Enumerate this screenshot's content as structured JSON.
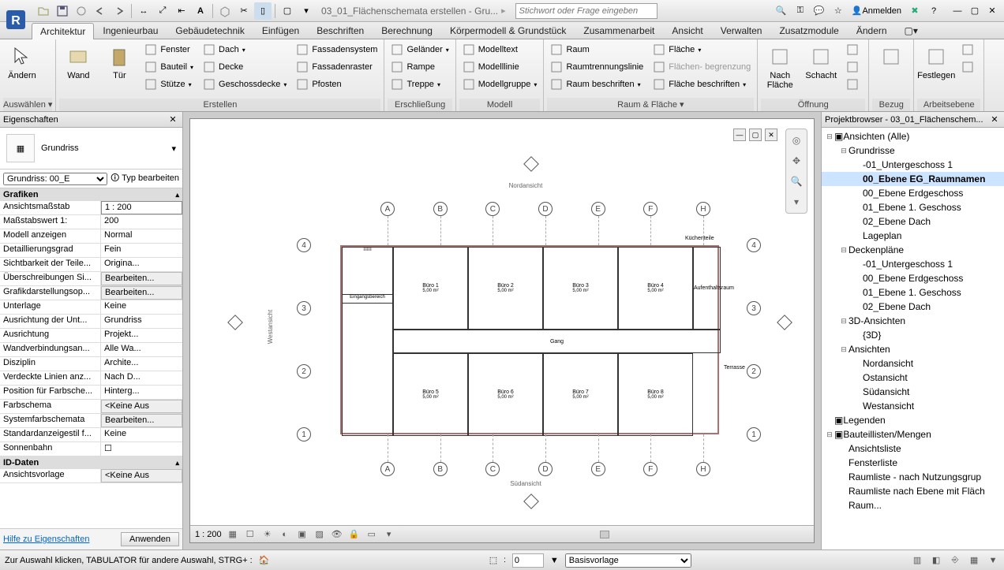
{
  "app": {
    "document_title": "03_01_Flächenschemata erstellen - Gru...",
    "search_placeholder": "Stichwort oder Frage eingeben",
    "login_label": "Anmelden"
  },
  "ribbon_tabs": [
    "Architektur",
    "Ingenieurbau",
    "Gebäudetechnik",
    "Einfügen",
    "Beschriften",
    "Berechnung",
    "Körpermodell & Grundstück",
    "Zusammenarbeit",
    "Ansicht",
    "Verwalten",
    "Zusatzmodule",
    "Ändern"
  ],
  "ribbon_active_index": 0,
  "ribbon": {
    "groups": [
      {
        "title": "Auswählen",
        "big": [
          {
            "label": "Ändern",
            "icon": "cursor"
          }
        ],
        "dropdown": true
      },
      {
        "title": "Erstellen",
        "big": [
          {
            "label": "Wand",
            "icon": "wall"
          },
          {
            "label": "Tür",
            "icon": "door"
          }
        ],
        "cols": [
          [
            {
              "label": "Fenster",
              "icon": "window"
            },
            {
              "label": "Bauteil",
              "icon": "component",
              "drop": true
            },
            {
              "label": "Stütze",
              "icon": "column",
              "drop": true
            }
          ],
          [
            {
              "label": "Dach",
              "icon": "roof",
              "drop": true
            },
            {
              "label": "Decke",
              "icon": "ceiling"
            },
            {
              "label": "Geschossdecke",
              "icon": "floor",
              "drop": true
            }
          ],
          [
            {
              "label": "Fassadensystem",
              "icon": "curtain"
            },
            {
              "label": "Fassadenraster",
              "icon": "grid"
            },
            {
              "label": "Pfosten",
              "icon": "mullion"
            }
          ]
        ]
      },
      {
        "title": "Erschließung",
        "cols": [
          [
            {
              "label": "Geländer",
              "icon": "railing",
              "drop": true
            },
            {
              "label": "Rampe",
              "icon": "ramp"
            },
            {
              "label": "Treppe",
              "icon": "stair",
              "drop": true
            }
          ]
        ]
      },
      {
        "title": "Modell",
        "cols": [
          [
            {
              "label": "Modelltext",
              "icon": "text"
            },
            {
              "label": "Modelllinie",
              "icon": "line"
            },
            {
              "label": "Modellgruppe",
              "icon": "group",
              "drop": true
            }
          ]
        ]
      },
      {
        "title": "Raum & Fläche",
        "cols": [
          [
            {
              "label": "Raum",
              "icon": "room"
            },
            {
              "label": "Raumtrennungslinie",
              "icon": "roomsep"
            },
            {
              "label": "Raum beschriften",
              "icon": "roomtag",
              "drop": true
            }
          ],
          [
            {
              "label": "Fläche",
              "icon": "area",
              "drop": true
            },
            {
              "label": "Flächen- begrenzung",
              "icon": "areabound",
              "disabled": true
            },
            {
              "label": "Fläche beschriften",
              "icon": "areatag",
              "drop": true
            }
          ]
        ],
        "dropdown": true
      },
      {
        "title": "Öffnung",
        "big": [
          {
            "label": "Nach Fläche",
            "icon": "byface"
          },
          {
            "label": "Schacht",
            "icon": "shaft"
          }
        ],
        "cols": [
          [
            {
              "label": "",
              "icon": "o1"
            },
            {
              "label": "",
              "icon": "o2"
            },
            {
              "label": "",
              "icon": "o3"
            }
          ]
        ]
      },
      {
        "title": "Bezug",
        "big": [
          {
            "label": "",
            "icon": "ref"
          }
        ]
      },
      {
        "title": "Arbeitsebene",
        "big": [
          {
            "label": "Festlegen",
            "icon": "setplane"
          }
        ],
        "cols": [
          [
            {
              "label": "",
              "icon": "wp1"
            },
            {
              "label": "",
              "icon": "wp2"
            }
          ]
        ]
      }
    ]
  },
  "properties": {
    "panel_title": "Eigenschaften",
    "type_name": "Grundriss",
    "instance_selector": "Grundriss: 00_E",
    "edit_type": "Typ bearbeiten",
    "sections": [
      {
        "title": "Grafiken",
        "rows": [
          {
            "k": "Ansichtsmaßstab",
            "v": "1 : 200",
            "input": true
          },
          {
            "k": "Maßstabswert 1:",
            "v": "200"
          },
          {
            "k": "Modell anzeigen",
            "v": "Normal"
          },
          {
            "k": "Detaillierungsgrad",
            "v": "Fein"
          },
          {
            "k": "Sichtbarkeit der Teile...",
            "v": "Origina..."
          },
          {
            "k": "Überschreibungen Si...",
            "v": "Bearbeiten...",
            "btn": true
          },
          {
            "k": "Grafikdarstellungsop...",
            "v": "Bearbeiten...",
            "btn": true
          },
          {
            "k": "Unterlage",
            "v": "Keine"
          },
          {
            "k": "Ausrichtung der Unt...",
            "v": "Grundriss"
          },
          {
            "k": "Ausrichtung",
            "v": "Projekt..."
          },
          {
            "k": "Wandverbindungsan...",
            "v": "Alle Wa..."
          },
          {
            "k": "Disziplin",
            "v": "Archite..."
          },
          {
            "k": "Verdeckte Linien anz...",
            "v": "Nach D..."
          },
          {
            "k": "Position für Farbsche...",
            "v": "Hinterg..."
          },
          {
            "k": "Farbschema",
            "v": "<Keine Aus",
            "btn": true
          },
          {
            "k": "Systemfarbschemata",
            "v": "Bearbeiten...",
            "btn": true
          },
          {
            "k": "Standardanzeigestil f...",
            "v": "Keine"
          },
          {
            "k": "Sonnenbahn",
            "v": "☐"
          }
        ]
      },
      {
        "title": "ID-Daten",
        "rows": [
          {
            "k": "Ansichtsvorlage",
            "v": "<Keine Aus",
            "btn": true
          }
        ]
      }
    ],
    "help_link": "Hilfe zu Eigenschaften",
    "apply": "Anwenden"
  },
  "canvas": {
    "scale_label": "1 : 200",
    "cols": [
      "A",
      "B",
      "C",
      "D",
      "E",
      "F",
      "H"
    ],
    "rows": [
      "4",
      "3",
      "2",
      "1"
    ],
    "labels": {
      "north": "Nordansicht",
      "south": "Südansicht",
      "west": "Westansicht"
    },
    "rooms_top": [
      "Büro 1",
      "Büro 2",
      "Büro 3",
      "Büro 4"
    ],
    "rooms_bot": [
      "Büro 5",
      "Büro 6",
      "Büro 7",
      "Büro 8"
    ],
    "corridor": "Gang",
    "entry": "Eingangsbereich",
    "kitchen": "Küchenteile",
    "lounge": "Aufenthaltsraum",
    "terrace": "Terrasse",
    "area_suffix": "5,00 m²"
  },
  "project_browser": {
    "panel_title": "Projektbrowser - 03_01_Flächenschem...",
    "tree": [
      {
        "d": 0,
        "exp": "-",
        "label": "Ansichten (Alle)",
        "icon": "views"
      },
      {
        "d": 1,
        "exp": "-",
        "label": "Grundrisse"
      },
      {
        "d": 2,
        "label": "-01_Untergeschoss 1"
      },
      {
        "d": 2,
        "label": "00_Ebene EG_Raumnamen",
        "sel": true
      },
      {
        "d": 2,
        "label": "00_Ebene Erdgeschoss"
      },
      {
        "d": 2,
        "label": "01_Ebene 1. Geschoss"
      },
      {
        "d": 2,
        "label": "02_Ebene Dach"
      },
      {
        "d": 2,
        "label": "Lageplan"
      },
      {
        "d": 1,
        "exp": "-",
        "label": "Deckenpläne"
      },
      {
        "d": 2,
        "label": "-01_Untergeschoss 1"
      },
      {
        "d": 2,
        "label": "00_Ebene Erdgeschoss"
      },
      {
        "d": 2,
        "label": "01_Ebene 1. Geschoss"
      },
      {
        "d": 2,
        "label": "02_Ebene Dach"
      },
      {
        "d": 1,
        "exp": "-",
        "label": "3D-Ansichten"
      },
      {
        "d": 2,
        "label": "{3D}"
      },
      {
        "d": 1,
        "exp": "-",
        "label": "Ansichten"
      },
      {
        "d": 2,
        "label": "Nordansicht"
      },
      {
        "d": 2,
        "label": "Ostansicht"
      },
      {
        "d": 2,
        "label": "Südansicht"
      },
      {
        "d": 2,
        "label": "Westansicht"
      },
      {
        "d": 0,
        "exp": "",
        "label": "Legenden",
        "icon": "legend"
      },
      {
        "d": 0,
        "exp": "-",
        "label": "Bauteillisten/Mengen",
        "icon": "schedule"
      },
      {
        "d": 1,
        "label": "Ansichtsliste"
      },
      {
        "d": 1,
        "label": "Fensterliste"
      },
      {
        "d": 1,
        "label": "Raumliste - nach Nutzungsgrup"
      },
      {
        "d": 1,
        "label": "Raumliste nach Ebene mit Fläch"
      },
      {
        "d": 1,
        "label": "Raum..."
      }
    ]
  },
  "statusbar": {
    "hint": "Zur Auswahl klicken, TABULATOR für andere Auswahl, STRG+ :",
    "count": "0",
    "template": "Basisvorlage"
  },
  "colors": {
    "accent": "#3a6ea5",
    "wall": "#b07070"
  }
}
